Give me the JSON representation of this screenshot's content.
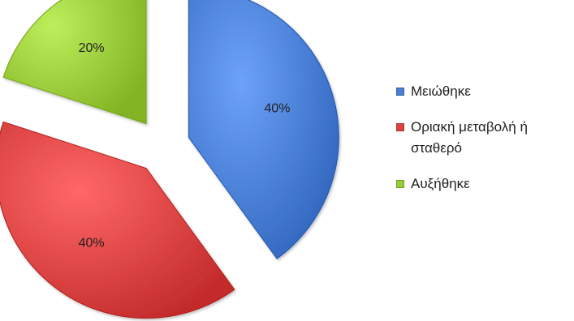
{
  "chart_data": {
    "type": "pie",
    "title": "",
    "legend_position": "right",
    "slices": [
      {
        "label": "Μειώθηκε",
        "value": 40,
        "value_label": "40%",
        "color": "#4a7fd6"
      },
      {
        "label": "Οριακή μεταβολή ή σταθερό",
        "value": 40,
        "value_label": "40%",
        "color": "#dc4444"
      },
      {
        "label": "Αυξήθηκε",
        "value": 20,
        "value_label": "20%",
        "color": "#9acc3a"
      }
    ]
  }
}
